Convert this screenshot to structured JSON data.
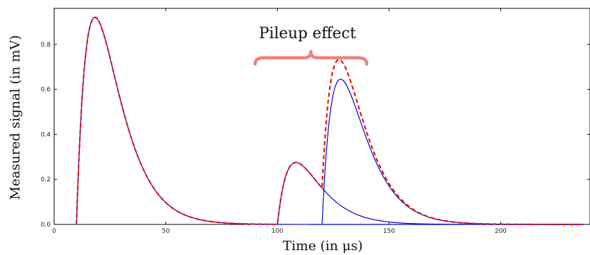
{
  "chart_data": {
    "type": "line",
    "xlabel": "Time (in μs)",
    "ylabel": "Measured signal (in mV)",
    "xlim": [
      0,
      240
    ],
    "ylim": [
      0,
      0.96
    ],
    "x_ticks": [
      0,
      50,
      100,
      150,
      200
    ],
    "y_ticks": [
      0.0,
      0.2,
      0.4,
      0.6,
      0.8
    ],
    "y_tick_labels": [
      "0.0",
      "0.2",
      "0.4",
      "0.6",
      "0.8"
    ],
    "grid": false,
    "legend": "none",
    "annotation": {
      "text": "Pileup effect",
      "brace_x_range": [
        90,
        140
      ],
      "brace_y": 0.74,
      "color": "#f08080"
    },
    "pulse_shape": {
      "model": "A * (t - t0)/tau * exp(1 - (t - t0)/tau)",
      "tau_us": 8.3
    },
    "series": [
      {
        "style": "solid",
        "color": "#0000cc",
        "pulses": [
          {
            "t0": 10,
            "amplitude": 0.92
          },
          {
            "t0": 100,
            "amplitude": 0.275
          },
          {
            "t0": 120,
            "amplitude": 0.645
          }
        ]
      },
      {
        "style": "dashed",
        "color": "#ee1111",
        "description_of": "sum of pulses",
        "peaks": [
          {
            "x": 18.3,
            "y": 0.92
          },
          {
            "x": 108.3,
            "y": 0.275
          },
          {
            "x": 127.5,
            "y": 0.725
          }
        ]
      }
    ],
    "x_range_plotted": [
      0,
      237
    ]
  }
}
